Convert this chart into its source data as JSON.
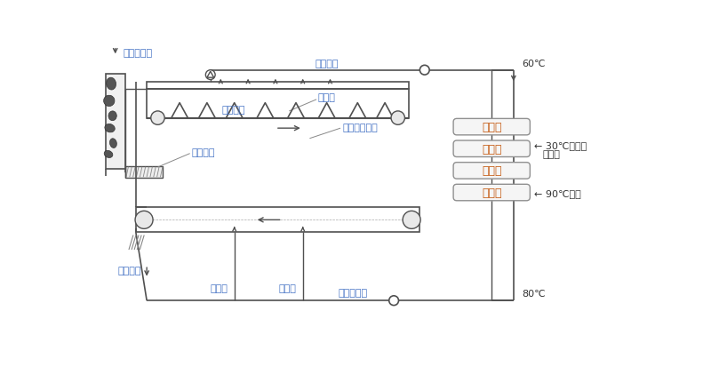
{
  "bg_color": "#ffffff",
  "blue": "#4472C4",
  "orange": "#C55A11",
  "lc": "#505050",
  "lc2": "#888888",
  "labels": {
    "wet_cake_feed": "濕泥餅進料",
    "wet_mud_crush": "濕泥粉碎",
    "exhaust_gas": "排出氣體",
    "wet_cake": "濕泥餅",
    "drying_sludge": "干燥中的污泥",
    "wet_hot_air": "濕熱空氣",
    "temp_60": "60℃",
    "dry_output": "干泥出料",
    "hot_air1": "熱空氣",
    "hot_air2": "熱空氣",
    "dry_hot_air": "干燥熱空氣",
    "temp_80": "80℃",
    "recuperator1": "回熱器",
    "cooler": "冷卻器",
    "recuperator2": "回熱器",
    "heater": "加熱器",
    "cooling_water_line1": "← 30℃冷卻水",
    "cooling_water_line2": "冷凝水",
    "hot_water": "← 90℃熱水"
  }
}
